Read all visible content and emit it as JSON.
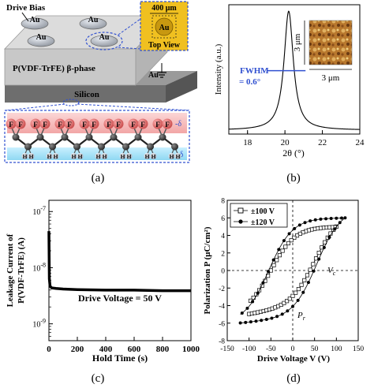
{
  "panel_a": {
    "label": "(a)",
    "drive_bias": "Drive Bias",
    "electrode": "Au",
    "size_label": "400 μm",
    "top_view_label": "Top View",
    "film_label": "P(VDF-TrFE) β-phase",
    "substrate_label": "Silicon",
    "charge_top": "-δ",
    "charge_bottom": "+δ",
    "atom_f": "F",
    "atom_h": "H",
    "atom_c": "C",
    "colors": {
      "film": "#c8c8c8",
      "top_view_bg": "#f0c020",
      "dashed_outline": "#3050d0",
      "neg_band": "#f6b8b8",
      "pos_band": "#aee4f8"
    }
  },
  "panel_b": {
    "label": "(b)",
    "fwhm_label": "FWHM",
    "fwhm_value": "= 0.6°",
    "scale_label": "3 μm",
    "chart_data": {
      "type": "line",
      "xlabel": "2θ (°)",
      "ylabel": "Intensity (a.u.)",
      "xlim": [
        17,
        24
      ],
      "xticks": [
        "18",
        "20",
        "22",
        "24"
      ],
      "peak_center": 20.2,
      "fwhm": 0.6,
      "peak_height": 0.92,
      "baseline": 0.03
    }
  },
  "panel_c": {
    "label": "(c)",
    "annotation": "Drive Voltage = 50 V",
    "chart_data": {
      "type": "line",
      "xlabel": "Hold Time (s)",
      "ylabel_line1": "Leakage Current of",
      "ylabel_line2": "P(VDF-TrFE) (A)",
      "xlim": [
        0,
        1000
      ],
      "xticks": [
        "0",
        "200",
        "400",
        "600",
        "800",
        "1000"
      ],
      "ylim_log": [
        -9.3,
        -6.8
      ],
      "yticks": [
        {
          "base": "10",
          "exp": "-7",
          "value": -7
        },
        {
          "base": "10",
          "exp": "-8",
          "value": -8
        },
        {
          "base": "10",
          "exp": "-9",
          "value": -9
        }
      ],
      "series": [
        {
          "x": [
            0,
            3,
            8,
            20,
            50,
            100,
            200,
            400,
            600,
            800,
            1000
          ],
          "y": [
            -7.35,
            -8.2,
            -8.33,
            -8.36,
            -8.37,
            -8.38,
            -8.39,
            -8.4,
            -8.4,
            -8.41,
            -8.41
          ]
        }
      ]
    }
  },
  "panel_d": {
    "label": "(d)",
    "vc_label": "V",
    "vc_sub": "c",
    "pr_label": "P",
    "pr_sub": "r",
    "chart_data": {
      "type": "scatter",
      "xlabel": "Drive Voltage V (V)",
      "ylabel": "Polarization P (μC/cm²)",
      "xlim": [
        -150,
        150
      ],
      "ylim": [
        -8,
        8
      ],
      "xticks": [
        "-150",
        "-100",
        "-50",
        "0",
        "50",
        "100",
        "150"
      ],
      "yticks": [
        "-8",
        "-6",
        "-4",
        "-2",
        "0",
        "2",
        "4",
        "6",
        "8"
      ],
      "legend_position": "top-left",
      "series": [
        {
          "name": "±100 V",
          "marker": "open-square",
          "vmax": 100,
          "ps": 5.0,
          "pr": 3.6,
          "vc": 50
        },
        {
          "name": "±120 V",
          "marker": "filled-circle",
          "vmax": 120,
          "ps": 6.0,
          "pr": 4.6,
          "vc": 55
        }
      ]
    }
  }
}
